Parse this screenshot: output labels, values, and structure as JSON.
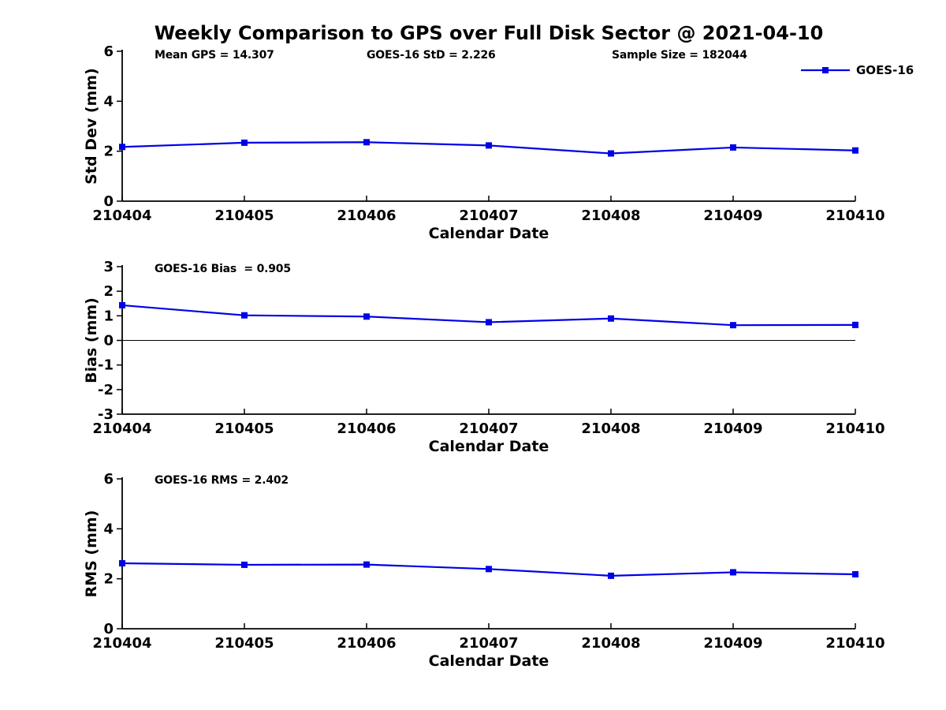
{
  "title": "Weekly Comparison to GPS over Full Disk Sector @ 2021-04-10",
  "accent_color": "#0000E8",
  "axis_color": "#000000",
  "legend": {
    "label": "GOES-16"
  },
  "chart_data": [
    {
      "type": "line",
      "ylabel": "Std Dev (mm)",
      "xlabel": "Calendar Date",
      "ylim": [
        0,
        6
      ],
      "yticks": [
        0,
        2,
        4,
        6
      ],
      "categories": [
        "210404",
        "210405",
        "210406",
        "210407",
        "210408",
        "210409",
        "210410"
      ],
      "series": [
        {
          "name": "GOES-16",
          "values": [
            2.17,
            2.34,
            2.36,
            2.23,
            1.91,
            2.15,
            2.03
          ]
        }
      ],
      "annotations": [
        "Mean GPS = 14.307",
        "GOES-16 StD = 2.226",
        "Sample Size = 182044"
      ],
      "legend_visible": true,
      "zero_line": false,
      "grid": false
    },
    {
      "type": "line",
      "ylabel": "Bias (mm)",
      "xlabel": "Calendar Date",
      "ylim": [
        -3,
        3
      ],
      "yticks": [
        -3,
        -2,
        -1,
        0,
        1,
        2,
        3
      ],
      "categories": [
        "210404",
        "210405",
        "210406",
        "210407",
        "210408",
        "210409",
        "210410"
      ],
      "series": [
        {
          "name": "GOES-16",
          "values": [
            1.43,
            1.02,
            0.97,
            0.74,
            0.89,
            0.62,
            0.63
          ]
        }
      ],
      "annotations": [
        "GOES-16 Bias  = 0.905"
      ],
      "legend_visible": false,
      "zero_line": true,
      "grid": false
    },
    {
      "type": "line",
      "ylabel": "RMS (mm)",
      "xlabel": "Calendar Date",
      "ylim": [
        0,
        6
      ],
      "yticks": [
        0,
        2,
        4,
        6
      ],
      "categories": [
        "210404",
        "210405",
        "210406",
        "210407",
        "210408",
        "210409",
        "210410"
      ],
      "series": [
        {
          "name": "GOES-16",
          "values": [
            2.62,
            2.56,
            2.57,
            2.39,
            2.12,
            2.26,
            2.18
          ]
        }
      ],
      "annotations": [
        "GOES-16 RMS = 2.402"
      ],
      "legend_visible": false,
      "zero_line": false,
      "grid": false
    }
  ]
}
